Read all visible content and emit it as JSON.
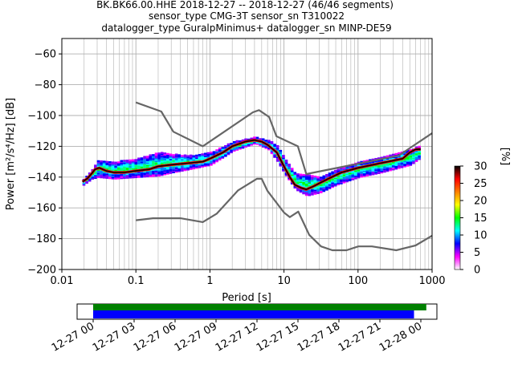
{
  "title_lines": [
    "BK.BK66.00.HHE   2018-12-27 -- 2018-12-27  (46/46 segments)",
    "sensor_type CMG-3T sensor_sn T310022",
    "datalogger_type GuralpMinimus+ datalogger_sn MINP-DE59"
  ],
  "chart_data": [
    {
      "type": "heatmap",
      "name": "ppsd",
      "xlabel": "Period [s]",
      "ylabel": "Power [m²/s⁴/Hz] [dB]",
      "xscale": "log",
      "xlim": [
        0.01,
        1000
      ],
      "ylim": [
        -200,
        -50
      ],
      "x_ticks": [
        0.01,
        0.1,
        1,
        10,
        100,
        1000
      ],
      "x_tick_labels": [
        "0.01",
        "0.1",
        "1",
        "10",
        "100",
        "1000"
      ],
      "y_ticks": [
        -200,
        -180,
        -160,
        -140,
        -120,
        -100,
        -80,
        -60
      ],
      "y_tick_labels": [
        "−200",
        "−180",
        "−160",
        "−140",
        "−120",
        "−100",
        "−80",
        "−60"
      ],
      "grid": true,
      "colorbar": {
        "label": "[%]",
        "range": [
          0,
          30
        ],
        "ticks": [
          "0",
          "5",
          "10",
          "15",
          "20",
          "25",
          "30"
        ],
        "colors": [
          "#ffffff",
          "#ff00ff",
          "#0000ff",
          "#00ffff",
          "#00ff00",
          "#ffff00",
          "#ff8000",
          "#ff0000",
          "#000000"
        ]
      },
      "series": [
        {
          "name": "",
          "role": "mode",
          "color": "#000000",
          "points": [
            [
              0.019,
              -143
            ],
            [
              0.022,
              -141
            ],
            [
              0.025,
              -138
            ],
            [
              0.028,
              -135
            ],
            [
              0.032,
              -134
            ],
            [
              0.04,
              -136
            ],
            [
              0.05,
              -137
            ],
            [
              0.07,
              -137
            ],
            [
              0.1,
              -136
            ],
            [
              0.15,
              -135
            ],
            [
              0.2,
              -133
            ],
            [
              0.3,
              -132
            ],
            [
              0.5,
              -131
            ],
            [
              0.8,
              -130
            ],
            [
              1,
              -128
            ],
            [
              1.5,
              -124
            ],
            [
              2,
              -120
            ],
            [
              3,
              -117
            ],
            [
              4,
              -116
            ],
            [
              5,
              -117
            ],
            [
              6,
              -119
            ],
            [
              8,
              -124
            ],
            [
              10,
              -133
            ],
            [
              12,
              -140
            ],
            [
              14,
              -145
            ],
            [
              17,
              -147
            ],
            [
              20,
              -148
            ],
            [
              25,
              -146
            ],
            [
              30,
              -144
            ],
            [
              40,
              -141
            ],
            [
              60,
              -137
            ],
            [
              100,
              -134
            ],
            [
              200,
              -131
            ],
            [
              400,
              -128
            ],
            [
              500,
              -124
            ],
            [
              600,
              -122
            ],
            [
              700,
              -122
            ]
          ]
        },
        {
          "name": "",
          "role": "noise-model-high",
          "color": "#666666",
          "points": [
            [
              0.1,
              -91.5
            ],
            [
              0.22,
              -97.4
            ],
            [
              0.32,
              -110.5
            ],
            [
              0.8,
              -120
            ],
            [
              3.8,
              -97.9
            ],
            [
              4.6,
              -96.5
            ],
            [
              6.3,
              -101
            ],
            [
              7.9,
              -113.5
            ],
            [
              15.4,
              -120
            ],
            [
              20,
              -138
            ],
            [
              354.8,
              -126
            ],
            [
              1000,
              -111.5
            ]
          ]
        },
        {
          "name": "",
          "role": "noise-model-low",
          "color": "#666666",
          "points": [
            [
              0.1,
              -168
            ],
            [
              0.17,
              -166.7
            ],
            [
              0.4,
              -166.7
            ],
            [
              0.8,
              -169.2
            ],
            [
              1.24,
              -163.7
            ],
            [
              2.4,
              -148.6
            ],
            [
              4.3,
              -141.1
            ],
            [
              5,
              -141.1
            ],
            [
              6,
              -149
            ],
            [
              10,
              -163
            ],
            [
              12,
              -166
            ],
            [
              15.6,
              -162.4
            ],
            [
              21.9,
              -177.5
            ],
            [
              31.6,
              -185
            ],
            [
              45,
              -187.5
            ],
            [
              70,
              -187.5
            ],
            [
              101,
              -185
            ],
            [
              154,
              -185
            ],
            [
              328,
              -187.5
            ],
            [
              600,
              -184.4
            ],
            [
              1000,
              -178
            ]
          ]
        }
      ],
      "density_band": [
        [
          0.019,
          -145,
          -141
        ],
        [
          0.025,
          -141,
          -135
        ],
        [
          0.03,
          -140,
          -129
        ],
        [
          0.05,
          -141,
          -130
        ],
        [
          0.1,
          -140,
          -128
        ],
        [
          0.2,
          -139,
          -124
        ],
        [
          0.3,
          -137,
          -125
        ],
        [
          0.5,
          -135,
          -126
        ],
        [
          1,
          -132,
          -124
        ],
        [
          2,
          -123,
          -117
        ],
        [
          4,
          -118,
          -114
        ],
        [
          6,
          -122,
          -116
        ],
        [
          8,
          -130,
          -120
        ],
        [
          10,
          -138,
          -128
        ],
        [
          14,
          -148,
          -138
        ],
        [
          20,
          -152,
          -138
        ],
        [
          30,
          -150,
          -140
        ],
        [
          50,
          -145,
          -135
        ],
        [
          100,
          -140,
          -130
        ],
        [
          200,
          -137,
          -127
        ],
        [
          500,
          -132,
          -122
        ],
        [
          700,
          -127,
          -119
        ]
      ]
    },
    {
      "type": "bar",
      "name": "data-availability",
      "x_tick_labels": [
        "12-27 00",
        "12-27 03",
        "12-27 06",
        "12-27 09",
        "12-27 12",
        "12-27 15",
        "12-27 18",
        "12-27 21",
        "12-28 00"
      ],
      "series": [
        {
          "name": "",
          "role": "data-present",
          "color": "#008000",
          "start_hour": 0,
          "end_hour": 24.4
        },
        {
          "name": "",
          "role": "psd-segments",
          "color": "#0000ff",
          "start_hour": 0,
          "end_hour": 23.5
        }
      ]
    }
  ]
}
